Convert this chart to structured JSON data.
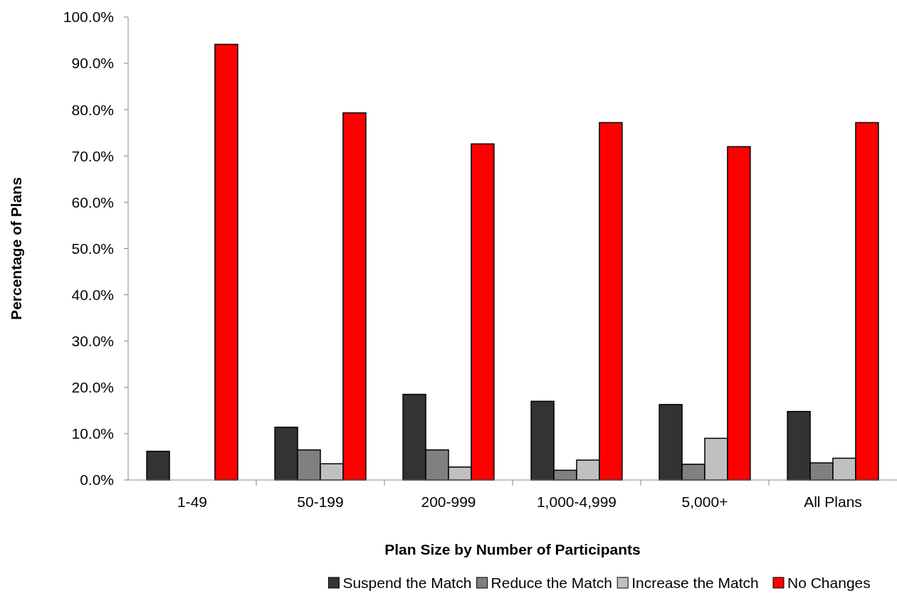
{
  "chart_data": {
    "type": "bar",
    "xlabel": "Plan Size by Number of Participants",
    "ylabel": "Percentage of Plans",
    "categories": [
      "1-49",
      "50-199",
      "200-999",
      "1,000-4,999",
      "5,000+",
      "All Plans"
    ],
    "series": [
      {
        "name": "Suspend the Match",
        "color": "#333333",
        "values": [
          6.2,
          11.4,
          18.5,
          17.0,
          16.3,
          14.8
        ]
      },
      {
        "name": "Reduce the Match",
        "color": "#808080",
        "values": [
          null,
          6.5,
          6.5,
          2.1,
          3.4,
          3.7
        ]
      },
      {
        "name": "Increase the Match",
        "color": "#c0c0c0",
        "values": [
          null,
          3.5,
          2.8,
          4.3,
          9.0,
          4.7
        ]
      },
      {
        "name": "No Changes",
        "color": "#ff0000",
        "values": [
          94.1,
          79.3,
          72.6,
          77.2,
          72.0,
          77.2
        ]
      }
    ],
    "ylim": [
      0,
      100
    ],
    "yticks": [
      {
        "value": 0,
        "label": "0.0%"
      },
      {
        "value": 10,
        "label": "10.0%"
      },
      {
        "value": 20,
        "label": "20.0%"
      },
      {
        "value": 30,
        "label": "30.0%"
      },
      {
        "value": 40,
        "label": "40.0%"
      },
      {
        "value": 50,
        "label": "50.0%"
      },
      {
        "value": 60,
        "label": "60.0%"
      },
      {
        "value": 70,
        "label": "70.0%"
      },
      {
        "value": 80,
        "label": "80.0%"
      },
      {
        "value": 90,
        "label": "90.0%"
      },
      {
        "value": 100,
        "label": "100.0%"
      }
    ],
    "grid": false,
    "legend": "bottom"
  }
}
